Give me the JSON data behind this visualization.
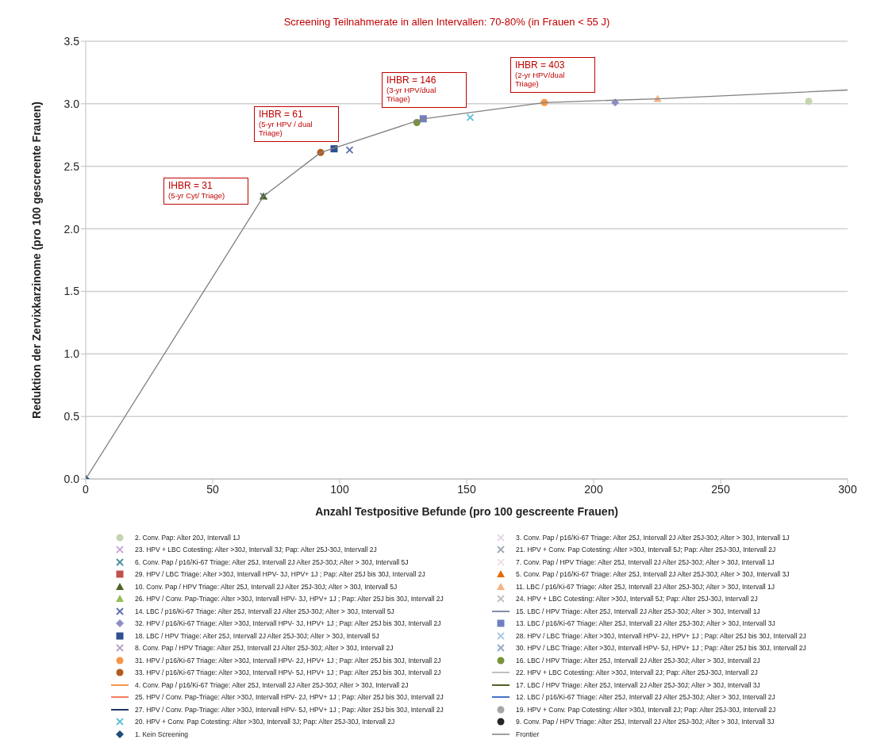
{
  "chart_data": {
    "type": "scatter",
    "title": "Screening Teilnahmerate in allen Intervallen: 70-80% (in Frauen < 55 J)",
    "xlabel": "Anzahl Testpositive Befunde (pro 100 gescreente Frauen)",
    "ylabel": "Reduktion der Zervixkarzinome (pro 100 gescreente Frauen)",
    "xlim": [
      0,
      300
    ],
    "xticks": [
      0,
      50,
      100,
      150,
      200,
      250,
      300
    ],
    "ylim": [
      0,
      3.5
    ],
    "yticks": [
      {
        "value": 0,
        "label": "0.0"
      },
      0.5,
      {
        "value": 1,
        "label": "1.0"
      },
      1.5,
      {
        "value": 2,
        "label": "2.0"
      },
      2.5,
      {
        "value": 3,
        "label": "3.0"
      },
      3.5
    ],
    "grid": "y",
    "legend": "bottom",
    "annotations": [
      "IHBR = 31\n(5-yr Cyt/ Triage)",
      "IHBR = 61\n(5-yr HPV / dual\nTriage)",
      "IHBR = 146\n(3-yr HPV/dual\nTriage)",
      "IHBR = 403\n(2-yr HPV/dual\nTriage)"
    ],
    "series": [
      {
        "name": "2. Conv. Pap: Alter 20J, Intervall 1J",
        "color": "#c5d5b0",
        "marker": "circle",
        "x": [
          284.7
        ],
        "values": [
          3.02
        ]
      },
      {
        "name": "3. Conv. Pap / p16/Ki-67 Triage: Alter 25J, Intervall 2J Alter 25J-30J; Alter > 30J, Intervall 1J",
        "color": "#e6d6e6",
        "marker": "cross",
        "x": [
          null
        ],
        "values": [
          null
        ]
      },
      {
        "name": "23. HPV + LBC Cotesting: Alter >30J, Intervall 3J; Pap: Alter 25J-30J, Intervall 2J",
        "color": "#c8a8d8",
        "marker": "cross",
        "x": [
          null
        ],
        "values": [
          null
        ]
      },
      {
        "name": "21. HPV + Conv. Pap Cotesting: Alter >30J, Intervall 5J; Pap: Alter 25J-30J, Intervall 2J",
        "color": "#a0a8b8",
        "marker": "cross",
        "x": [
          null
        ],
        "values": [
          null
        ]
      },
      {
        "name": "6. Conv. Pap / p16/Ki-67 Triage: Alter 25J, Intervall 2J Alter 25J-30J; Alter > 30J, Intervall 5J",
        "color": "#4b8c9c",
        "marker": "cross",
        "x": [
          70
        ],
        "values": [
          2.26
        ]
      },
      {
        "name": "7. Conv. Pap / HPV Triage: Alter 25J, Intervall 2J Alter 25J-30J; Alter > 30J, Intervall 1J",
        "color": "#f0e0e0",
        "marker": "cross",
        "x": [
          null
        ],
        "values": [
          null
        ]
      },
      {
        "name": "29. HPV / LBC Triage: Alter >30J, Intervall  HPV- 3J, HPV+ 1J ; Pap: Alter 25J bis 30J, Intervall 2J",
        "color": "#c0504d",
        "marker": "square",
        "x": [
          null
        ],
        "values": [
          null
        ]
      },
      {
        "name": "5. Conv. Pap / p16/Ki-67 Triage: Alter 25J, Intervall 2J Alter 25J-30J; Alter > 30J, Intervall 3J",
        "color": "#e46c0a",
        "marker": "triangle",
        "x": [
          null
        ],
        "values": [
          null
        ]
      },
      {
        "name": "10. Conv. Pap / HPV Triage: Alter 25J, Intervall 2J Alter 25J-30J; Alter > 30J, Intervall 5J",
        "color": "#4f6228",
        "marker": "triangle",
        "x": [
          70
        ],
        "values": [
          2.26
        ]
      },
      {
        "name": "11. LBC / p16/Ki-67 Triage: Alter 25J, Intervall 2J Alter 25J-30J; Alter > 30J, Intervall 1J",
        "color": "#f4b183",
        "marker": "triangle",
        "x": [
          225.2
        ],
        "values": [
          3.04
        ]
      },
      {
        "name": "26. HPV / Conv. Pap-Triage: Alter >30J, Intervall  HPV- 3J, HPV+ 1J ; Pap: Alter 25J bis 30J, Intervall 2J",
        "color": "#9bbb59",
        "marker": "triangle",
        "x": [
          null
        ],
        "values": [
          null
        ]
      },
      {
        "name": "24. HPV + LBC Cotesting: Alter >30J, Intervall 5J; Pap: Alter 25J-30J, Intervall 2J",
        "color": "#bfbfbf",
        "marker": "cross",
        "x": [
          null
        ],
        "values": [
          null
        ]
      },
      {
        "name": "14. LBC / p16/Ki-67 Triage: Alter 25J, Intervall 2J Alter 25J-30J; Alter > 30J, Intervall 5J",
        "color": "#5b6fae",
        "marker": "cross",
        "x": [
          103.9
        ],
        "values": [
          2.63
        ]
      },
      {
        "name": "15. LBC / HPV Triage: Alter 25J, Intervall 2J Alter 25J-30J; Alter > 30J, Intervall 1J",
        "color": "#7f8fa6",
        "marker": "none",
        "x": [
          null
        ],
        "values": [
          null
        ]
      },
      {
        "name": "32. HPV / p16/Ki-67 Triage: Alter >30J, Intervall  HPV- 3J, HPV+ 1J ; Pap: Alter 25J bis 30J, Intervall 2J",
        "color": "#8e8ec4",
        "marker": "diamond",
        "x": [
          208.5
        ],
        "values": [
          3.01
        ]
      },
      {
        "name": "13. LBC / p16/Ki-67 Triage: Alter 25J, Intervall 2J Alter 25J-30J; Alter > 30J, Intervall 3J",
        "color": "#7080c0",
        "marker": "square",
        "x": [
          132.9
        ],
        "values": [
          2.88
        ]
      },
      {
        "name": "18. LBC / HPV Triage: Alter 25J, Intervall 2J Alter 25J-30J; Alter > 30J, Intervall 5J",
        "color": "#2f4f8f",
        "marker": "square",
        "x": [
          97.8
        ],
        "values": [
          2.64
        ]
      },
      {
        "name": "28. HPV / LBC Triage: Alter >30J, Intervall  HPV- 2J, HPV+ 1J ; Pap: Alter 25J bis 30J, Intervall 2J",
        "color": "#a6c8e0",
        "marker": "cross",
        "x": [
          null
        ],
        "values": [
          null
        ]
      },
      {
        "name": "8. Conv. Pap / HPV Triage: Alter 25J, Intervall 2J Alter 25J-30J; Alter > 30J, Intervall 2J",
        "color": "#b4a0c8",
        "marker": "cross",
        "x": [
          null
        ],
        "values": [
          null
        ]
      },
      {
        "name": "30. HPV / LBC Triage: Alter >30J, Intervall  HPV- 5J, HPV+ 1J ; Pap: Alter 25J bis 30J, Intervall 2J",
        "color": "#93a8c8",
        "marker": "cross",
        "x": [
          null
        ],
        "values": [
          null
        ]
      },
      {
        "name": "31. HPV / p16/Ki-67 Triage: Alter >30J, Intervall  HPV- 2J, HPV+ 1J ; Pap: Alter 25J bis 30J, Intervall 2J",
        "color": "#f79646",
        "marker": "circle",
        "x": [
          180.6
        ],
        "values": [
          3.01
        ]
      },
      {
        "name": "16. LBC / HPV Triage: Alter 25J, Intervall 2J Alter 25J-30J; Alter > 30J, Intervall 2J",
        "color": "#77933c",
        "marker": "circle",
        "x": [
          130.4
        ],
        "values": [
          2.85
        ]
      },
      {
        "name": "33. HPV / p16/Ki-67 Triage: Alter >30J, Intervall  HPV- 5J, HPV+ 1J ; Pap: Alter 25J bis 30J, Intervall 2J",
        "color": "#b35b1f",
        "marker": "circle",
        "x": [
          92.5
        ],
        "values": [
          2.61
        ]
      },
      {
        "name": "22. HPV + LBC Cotesting: Alter >30J, Intervall 2J; Pap: Alter 25J-30J, Intervall 2J",
        "color": "#c0c0c0",
        "marker": "none",
        "x": [
          null
        ],
        "values": [
          null
        ]
      },
      {
        "name": "4. Conv. Pap / p16/Ki-67 Triage: Alter 25J, Intervall 2J Alter 25J-30J; Alter > 30J, Intervall 2J",
        "color": "#f79646",
        "marker": "none",
        "x": [
          null
        ],
        "values": [
          null
        ]
      },
      {
        "name": "17. LBC / HPV Triage: Alter 25J, Intervall 2J Alter 25J-30J; Alter > 30J, Intervall 3J",
        "color": "#4f6228",
        "marker": "none",
        "x": [
          null
        ],
        "values": [
          null
        ]
      },
      {
        "name": "25. HPV / Conv. Pap-Triage: Alter >30J, Intervall  HPV- 2J, HPV+ 1J ; Pap: Alter 25J bis 30J, Intervall 2J",
        "color": "#f08060",
        "marker": "none",
        "x": [
          null
        ],
        "values": [
          null
        ]
      },
      {
        "name": "12. LBC / p16/Ki-67 Triage: Alter 25J, Intervall 2J Alter 25J-30J; Alter > 30J, Intervall 2J",
        "color": "#4472c4",
        "marker": "none",
        "x": [
          null
        ],
        "values": [
          null
        ]
      },
      {
        "name": "27. HPV / Conv. Pap-Triage: Alter >30J, Intervall  HPV- 5J, HPV+ 1J ; Pap: Alter 25J bis 30J, Intervall 2J",
        "color": "#1f3864",
        "marker": "none",
        "x": [
          null
        ],
        "values": [
          null
        ]
      },
      {
        "name": "19. HPV + Conv. Pap Cotesting: Alter >30J, Intervall 2J; Pap: Alter 25J-30J, Intervall 2J",
        "color": "#a6a6a6",
        "marker": "circle",
        "x": [
          null
        ],
        "values": [
          null
        ]
      },
      {
        "name": "20. HPV + Conv. Pap Cotesting: Alter >30J, Intervall 3J; Pap: Alter 25J-30J, Intervall 2J",
        "color": "#5fc0d8",
        "marker": "cross",
        "x": [
          151.4
        ],
        "values": [
          2.89
        ]
      },
      {
        "name": "9. Conv. Pap / HPV Triage: Alter 25J, Intervall 2J Alter 25J-30J; Alter > 30J, Intervall 3J",
        "color": "#262626",
        "marker": "circle",
        "x": [
          null
        ],
        "values": [
          null
        ]
      },
      {
        "name": "1. Kein Screening",
        "color": "#1f4e79",
        "marker": "diamond",
        "x": [
          0
        ],
        "values": [
          0
        ]
      },
      {
        "name": "Frontier",
        "type": "line",
        "color": "#808080",
        "marker": "none",
        "x": [
          0,
          70,
          92.5,
          132.9,
          180.6,
          225.2,
          300
        ],
        "values": [
          0,
          2.26,
          2.61,
          2.88,
          3.01,
          3.04,
          3.11
        ]
      }
    ]
  }
}
